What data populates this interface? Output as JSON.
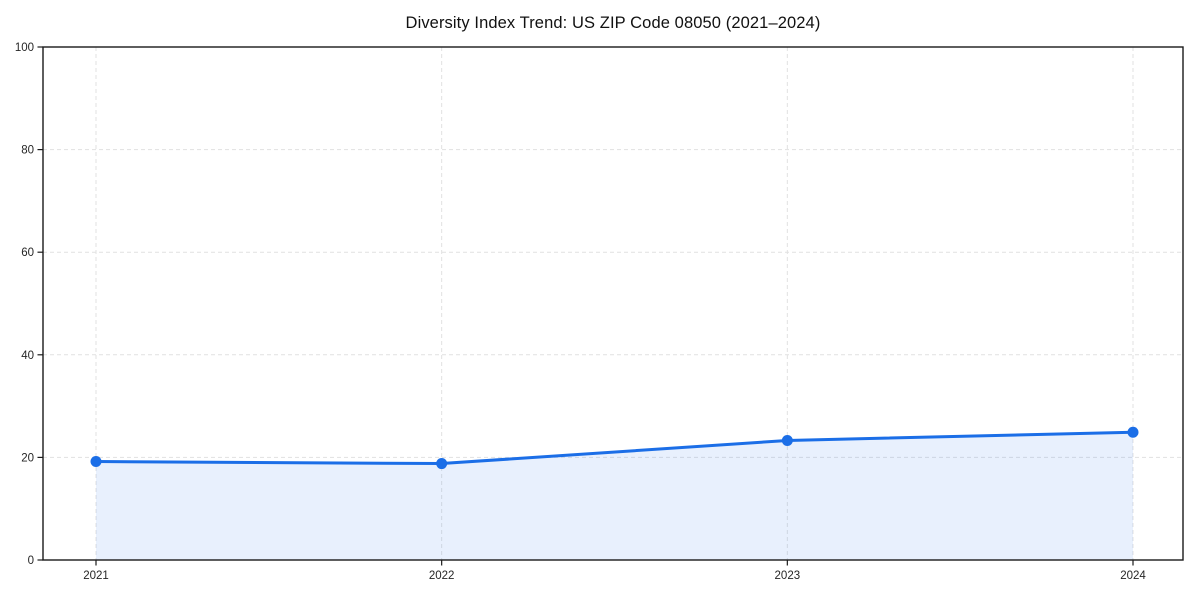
{
  "chart_data": {
    "type": "line",
    "title": "Diversity Index Trend: US ZIP Code 08050 (2021–2024)",
    "x": [
      2021,
      2022,
      2023,
      2024
    ],
    "series": [
      {
        "name": "Diversity Index",
        "values": [
          19.2,
          18.8,
          23.3,
          24.9
        ]
      }
    ],
    "xticks": [
      "2021",
      "2022",
      "2023",
      "2024"
    ],
    "yticks": [
      0,
      20,
      40,
      60,
      80,
      100
    ],
    "ylim": [
      0,
      100
    ],
    "xlabel": "",
    "ylabel": "",
    "grid": "dashed",
    "legend": "none",
    "area_fill": true,
    "marker": "circle",
    "colors": {
      "line": "#1b6ee7",
      "marker": "#1b6ee7",
      "fill": "#1b6ee7",
      "fill_opacity": 0.1,
      "grid": "#e1e1e1",
      "spine": "#1a1a1a",
      "tick_label": "#262626",
      "title": "#111111",
      "background": "#ffffff"
    }
  }
}
